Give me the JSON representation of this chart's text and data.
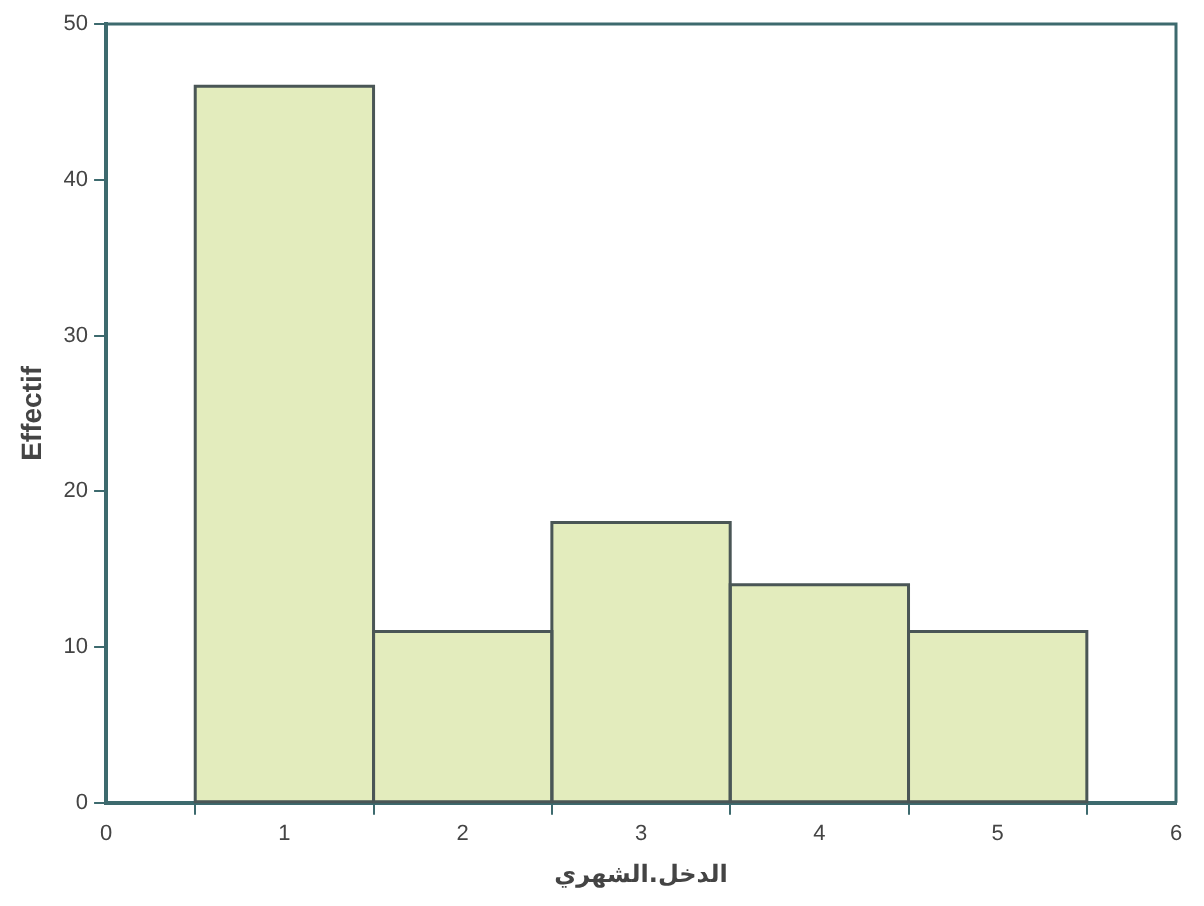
{
  "chart_data": {
    "type": "histogram",
    "bins": [
      0.5,
      1.5,
      2.5,
      3.5,
      4.5,
      5.5
    ],
    "values": [
      46,
      11,
      18,
      14,
      11
    ],
    "color": "#e3ecbd",
    "xlabel": "الدخل.الشهري",
    "ylabel": "Effectif",
    "xlim": [
      0,
      6
    ],
    "xticks": [
      0,
      1,
      2,
      3,
      4,
      5,
      6
    ],
    "ylim": [
      0,
      50
    ],
    "yticks": [
      0,
      10,
      20,
      30,
      40,
      50
    ],
    "grid": false,
    "legend": false
  }
}
